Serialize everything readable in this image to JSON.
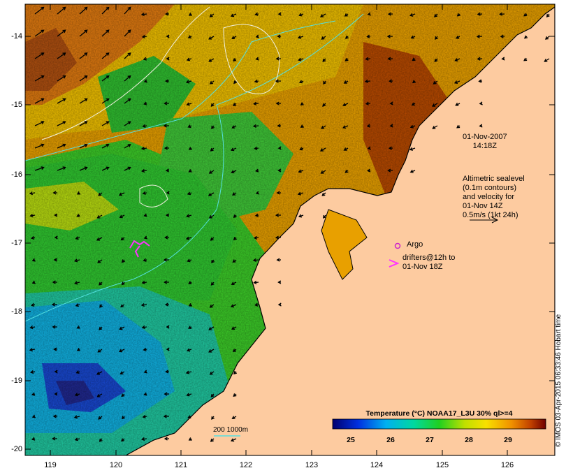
{
  "map": {
    "y_ticks": [
      "-14",
      "-15",
      "-16",
      "-17",
      "-18",
      "-19",
      "-20"
    ],
    "x_ticks": [
      "119",
      "120",
      "121",
      "122",
      "123",
      "124",
      "125",
      "126"
    ],
    "datetime": [
      "01-Nov-2007",
      "14:18Z"
    ],
    "altimetry_text": [
      "Altimetric sealevel",
      "(0.1m contours)",
      "and velocity for",
      "01-Nov 14Z",
      "0.5m/s (1kt 24h)"
    ],
    "argo_label": "Argo",
    "drifter_text": [
      "drifters@12h to",
      "01-Nov 18Z"
    ],
    "scale_label": "200  1000m",
    "credit": "© IMOS 03-Apr-2015 06:33:46 Hobart time",
    "colorbar": {
      "title": "Temperature (°C) NOAA17_L3U 30% ql>=4",
      "ticks": [
        "25",
        "26",
        "27",
        "28",
        "29"
      ]
    },
    "colors": {
      "land": "#fdcba0",
      "argo": "#cc22cc",
      "drifter": "#ff33ff",
      "isobath": "#55e0e0",
      "sea_level_contour": "#f0f0e0"
    }
  }
}
